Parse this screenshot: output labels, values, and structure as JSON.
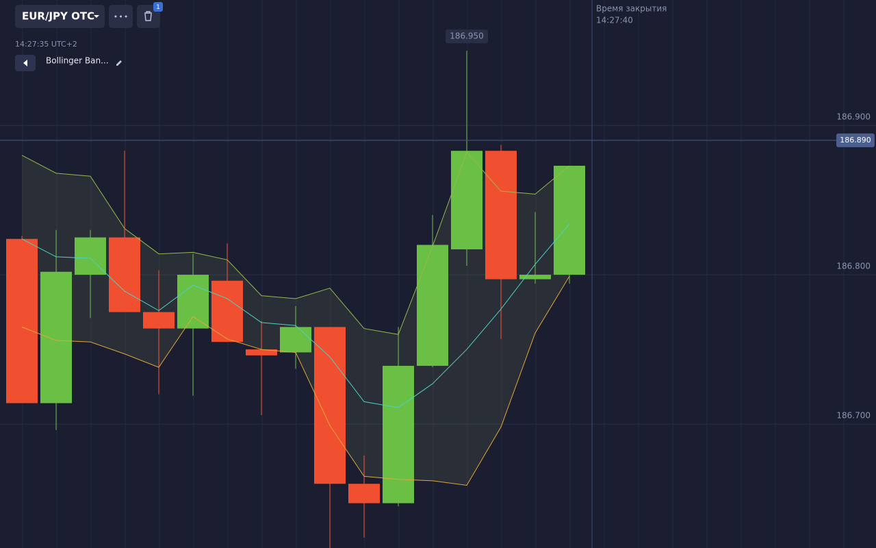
{
  "header": {
    "symbol": "EUR/JPY OTC",
    "badge": "1",
    "time": "14:27:35 UTC+2",
    "indicator": "Bollinger Ban...",
    "close_time_title": "Время закрытия",
    "close_time": "14:27:40",
    "max_label": "186.950"
  },
  "chart_data": {
    "type": "candlestick",
    "open": [
      186.824,
      186.714,
      186.8,
      186.825,
      186.775,
      186.764,
      186.796,
      186.75,
      186.748,
      186.765,
      186.66,
      186.647,
      186.739,
      186.817,
      186.883,
      186.797,
      186.8
    ],
    "high": [
      186.826,
      186.83,
      186.83,
      186.883,
      186.803,
      186.814,
      186.821,
      186.769,
      186.779,
      186.765,
      186.679,
      186.765,
      186.84,
      186.95,
      186.887,
      186.842,
      186.873
    ],
    "low": [
      186.714,
      186.696,
      186.771,
      186.775,
      186.72,
      186.719,
      186.755,
      186.706,
      186.737,
      186.617,
      186.624,
      186.645,
      186.738,
      186.806,
      186.757,
      186.794,
      186.794
    ],
    "close": [
      186.714,
      186.802,
      186.825,
      186.775,
      186.764,
      186.8,
      186.755,
      186.746,
      186.765,
      186.66,
      186.647,
      186.739,
      186.82,
      186.883,
      186.797,
      186.8,
      186.873
    ],
    "up_color": "#6abf45",
    "down_color": "#f0502f",
    "bands": {
      "upper": [
        186.88,
        186.868,
        186.866,
        186.831,
        186.814,
        186.815,
        186.81,
        186.786,
        186.784,
        186.791,
        186.764,
        186.76,
        186.819,
        186.882,
        186.856,
        186.854,
        186.873
      ],
      "middle": [
        186.824,
        186.812,
        186.811,
        186.789,
        186.776,
        186.793,
        186.784,
        186.768,
        186.766,
        186.745,
        186.715,
        186.711,
        186.727,
        186.75,
        186.777,
        186.807,
        186.834
      ],
      "lower": [
        186.765,
        186.756,
        186.755,
        186.747,
        186.738,
        186.772,
        186.757,
        186.75,
        186.748,
        186.699,
        186.665,
        186.663,
        186.662,
        186.659,
        186.698,
        186.761,
        186.799
      ],
      "upper_color": "#9ab84a",
      "middle_color": "#4fd1c5",
      "lower_color": "#e0a83a"
    },
    "ylim": [
      186.617,
      186.984
    ],
    "yticks": [
      {
        "value": 186.7,
        "label": "186.700"
      },
      {
        "value": 186.8,
        "label": "186.800"
      },
      {
        "value": 186.9,
        "label": "186.900"
      }
    ],
    "current_price": {
      "value": 186.89,
      "label": "186.890"
    },
    "grid": true
  }
}
